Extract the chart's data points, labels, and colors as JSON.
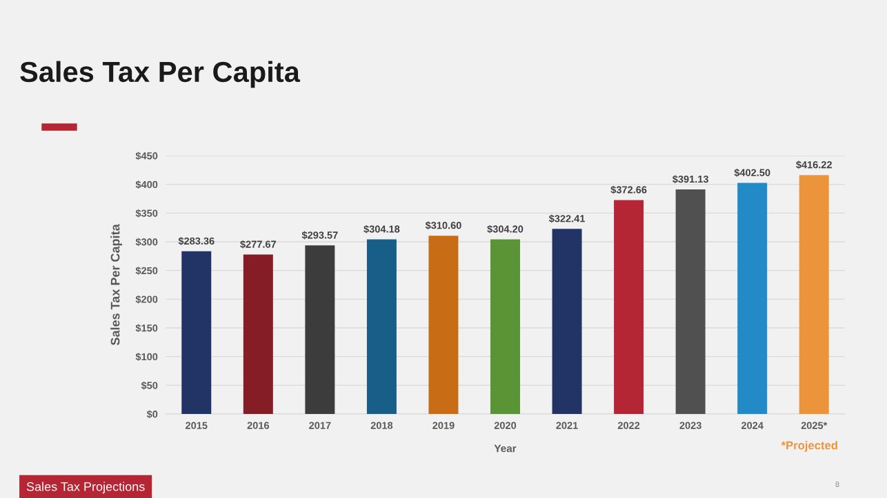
{
  "chart_data": {
    "type": "bar",
    "title": "Sales Tax Per Capita",
    "xlabel": "Year",
    "ylabel": "Sales Tax Per Capita",
    "categories": [
      "2015",
      "2016",
      "2017",
      "2018",
      "2019",
      "2020",
      "2021",
      "2022",
      "2023",
      "2024",
      "2025*"
    ],
    "values": [
      283.36,
      277.67,
      293.57,
      304.18,
      310.6,
      304.2,
      322.41,
      372.66,
      391.13,
      402.5,
      416.22
    ],
    "value_labels": [
      "$283.36",
      "$277.67",
      "$293.57",
      "$304.18",
      "$310.60",
      "$304.20",
      "$322.41",
      "$372.66",
      "$391.13",
      "$402.50",
      "$416.22"
    ],
    "colors": [
      "#223366",
      "#851d27",
      "#3c3c3c",
      "#175f88",
      "#c86d15",
      "#5a9437",
      "#223366",
      "#b42633",
      "#505050",
      "#228ac7",
      "#eb943c"
    ],
    "ylim": [
      0,
      450
    ],
    "yticks": [
      {
        "value": 0,
        "label": "$0"
      },
      {
        "value": 50,
        "label": "$50"
      },
      {
        "value": 100,
        "label": "$100"
      },
      {
        "value": 150,
        "label": "$150"
      },
      {
        "value": 200,
        "label": "$200"
      },
      {
        "value": 250,
        "label": "$250"
      },
      {
        "value": 300,
        "label": "$300"
      },
      {
        "value": 350,
        "label": "$350"
      },
      {
        "value": 400,
        "label": "$400"
      },
      {
        "value": 450,
        "label": "$450"
      }
    ],
    "grid": "y",
    "annotations": [
      "*Projected",
      "Sales Tax Projections",
      "8"
    ]
  }
}
